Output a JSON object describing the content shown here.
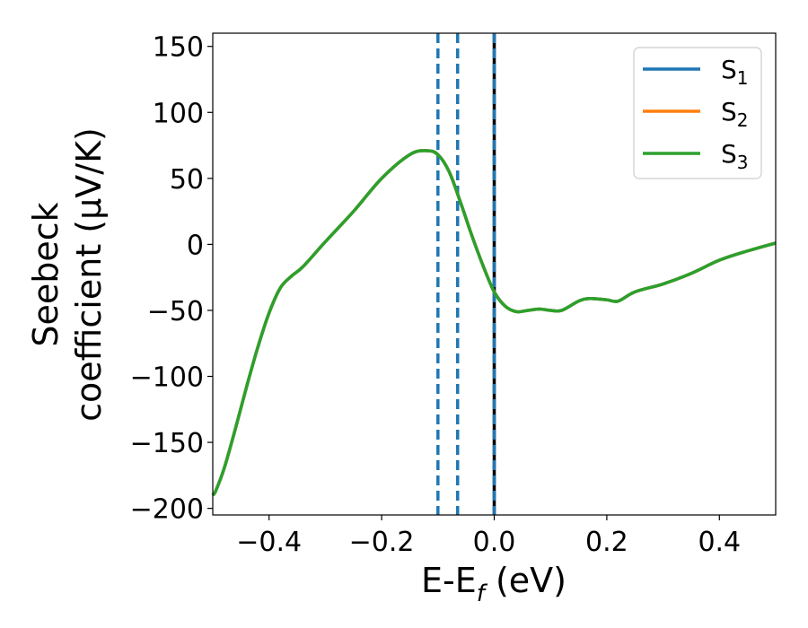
{
  "chart_data": {
    "type": "line",
    "title": "",
    "xlabel": "E-E",
    "xlabel_sub": "f",
    "xlabel_unit": " (eV)",
    "ylabel_line1": "Seebeck",
    "ylabel_line2": "coefficient  (μV/K)",
    "xlim": [
      -0.5,
      0.5
    ],
    "ylim": [
      -205,
      160
    ],
    "xticks": [
      -0.4,
      -0.2,
      0.0,
      0.2,
      0.4
    ],
    "xtick_labels": [
      "−0.4",
      "−0.2",
      "0.0",
      "0.2",
      "0.4"
    ],
    "yticks": [
      -200,
      -150,
      -100,
      -50,
      0,
      50,
      100,
      150
    ],
    "ytick_labels": [
      "−200",
      "−150",
      "−100",
      "−50",
      "0",
      "50",
      "100",
      "150"
    ],
    "grid": false,
    "legend_position": "top-right",
    "series": [
      {
        "name": "S",
        "sub": "1",
        "color": "#1f77b4",
        "x": [
          -0.5,
          -0.495,
          -0.48,
          -0.46,
          -0.44,
          -0.42,
          -0.4,
          -0.38,
          -0.36,
          -0.34,
          -0.3,
          -0.25,
          -0.2,
          -0.15,
          -0.12,
          -0.1,
          -0.08,
          -0.06,
          -0.04,
          -0.02,
          0.0,
          0.02,
          0.04,
          0.06,
          0.08,
          0.1,
          0.12,
          0.15,
          0.17,
          0.2,
          0.22,
          0.25,
          0.3,
          0.35,
          0.4,
          0.45,
          0.5
        ],
        "y": [
          -190,
          -187,
          -170,
          -140,
          -108,
          -78,
          -52,
          -33,
          -24,
          -17,
          2,
          25,
          50,
          68,
          71,
          68,
          55,
          32,
          7,
          -16,
          -36,
          -47,
          -51,
          -50,
          -49,
          -50,
          -50,
          -43,
          -41,
          -42,
          -43,
          -36,
          -30,
          -22,
          -12,
          -5,
          1
        ]
      },
      {
        "name": "S",
        "sub": "2",
        "color": "#ff7f0e",
        "x": [
          -0.5,
          -0.495,
          -0.48,
          -0.46,
          -0.44,
          -0.42,
          -0.4,
          -0.38,
          -0.36,
          -0.34,
          -0.3,
          -0.25,
          -0.2,
          -0.15,
          -0.12,
          -0.1,
          -0.08,
          -0.06,
          -0.04,
          -0.02,
          0.0,
          0.02,
          0.04,
          0.06,
          0.08,
          0.1,
          0.12,
          0.15,
          0.17,
          0.2,
          0.22,
          0.25,
          0.3,
          0.35,
          0.4,
          0.45,
          0.5
        ],
        "y": [
          -190,
          -187,
          -170,
          -140,
          -108,
          -78,
          -52,
          -33,
          -24,
          -17,
          2,
          25,
          50,
          68,
          71,
          68,
          55,
          32,
          7,
          -16,
          -36,
          -47,
          -51,
          -50,
          -49,
          -50,
          -50,
          -43,
          -41,
          -42,
          -43,
          -36,
          -30,
          -22,
          -12,
          -5,
          1
        ]
      },
      {
        "name": "S",
        "sub": "3",
        "color": "#2ca02c",
        "x": [
          -0.5,
          -0.495,
          -0.48,
          -0.46,
          -0.44,
          -0.42,
          -0.4,
          -0.38,
          -0.36,
          -0.34,
          -0.3,
          -0.25,
          -0.2,
          -0.15,
          -0.12,
          -0.1,
          -0.08,
          -0.06,
          -0.04,
          -0.02,
          0.0,
          0.02,
          0.04,
          0.06,
          0.08,
          0.1,
          0.12,
          0.15,
          0.17,
          0.2,
          0.22,
          0.25,
          0.3,
          0.35,
          0.4,
          0.45,
          0.5
        ],
        "y": [
          -190,
          -187,
          -170,
          -140,
          -108,
          -78,
          -52,
          -33,
          -24,
          -17,
          2,
          25,
          50,
          68,
          71,
          68,
          55,
          32,
          7,
          -16,
          -36,
          -47,
          -51,
          -50,
          -49,
          -50,
          -50,
          -43,
          -41,
          -42,
          -43,
          -36,
          -30,
          -22,
          -12,
          -5,
          1
        ]
      }
    ],
    "vlines": [
      {
        "x": -0.1,
        "style": "dashed",
        "color": "#1f77b4"
      },
      {
        "x": -0.065,
        "style": "dashed",
        "color": "#1f77b4"
      },
      {
        "x": 0.0,
        "style": "solid",
        "color": "#000000"
      },
      {
        "x": 0.0,
        "style": "dashed",
        "color": "#1f77b4"
      }
    ]
  }
}
